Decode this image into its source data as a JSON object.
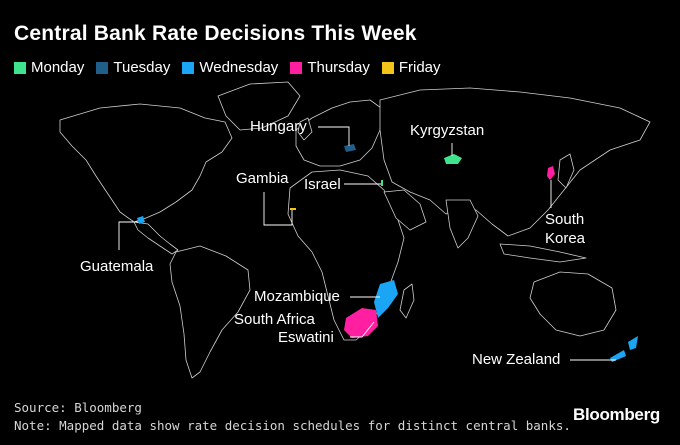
{
  "title": "Central Bank Rate Decisions This Week",
  "legend": [
    {
      "label": "Monday",
      "color": "#3fe38c"
    },
    {
      "label": "Tuesday",
      "color": "#1f5f8a"
    },
    {
      "label": "Wednesday",
      "color": "#1aa6f5"
    },
    {
      "label": "Thursday",
      "color": "#ff1fa0"
    },
    {
      "label": "Friday",
      "color": "#f5c418"
    }
  ],
  "countries": {
    "hungary": {
      "label": "Hungary",
      "day": "Tuesday"
    },
    "kyrgyzstan": {
      "label": "Kyrgyzstan",
      "day": "Monday"
    },
    "gambia": {
      "label": "Gambia",
      "day": "Friday"
    },
    "israel": {
      "label": "Israel",
      "day": "Monday"
    },
    "south_korea": {
      "label": "South\nKorea",
      "day": "Thursday"
    },
    "guatemala": {
      "label": "Guatemala",
      "day": "Wednesday"
    },
    "mozambique": {
      "label": "Mozambique",
      "day": "Wednesday"
    },
    "south_africa": {
      "label": "South Africa",
      "day": "Thursday"
    },
    "eswatini": {
      "label": "Eswatini",
      "day": "Thursday"
    },
    "new_zealand": {
      "label": "New Zealand",
      "day": "Wednesday"
    }
  },
  "footer": {
    "source": "Source: Bloomberg",
    "note": "Note: Mapped data show rate decision schedules for distinct central banks.",
    "brand": "Bloomberg"
  }
}
